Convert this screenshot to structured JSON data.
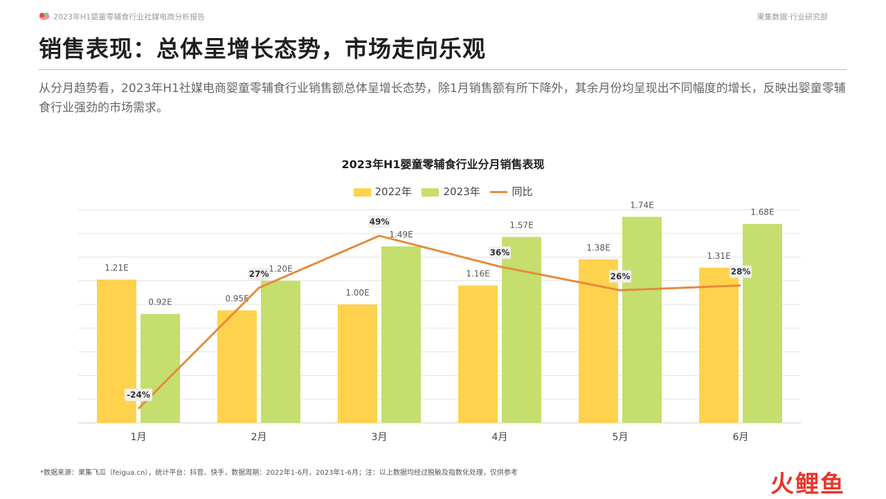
{
  "header": {
    "report_title": "2023年H1婴童零辅食行业社媒电商分析报告",
    "dept": "果集数据·行业研究部"
  },
  "page_title": "销售表现：总体呈增长态势，市场走向乐观",
  "summary": "从分月趋势看，2023年H1社媒电商婴童零辅食行业销售额总体呈增长态势，除1月销售额有所下降外，其余月份均呈现出不同幅度的增长，反映出婴童零辅食行业强劲的市场需求。",
  "colors": {
    "bar_2022": "#FFD24D",
    "bar_2023": "#C5DE6E",
    "yoy_line": "#E58B3A",
    "grid": "#E3E3E3"
  },
  "chart_data": {
    "type": "bar",
    "title": "2023年H1婴童零辅食行业分月销售表现",
    "categories": [
      "1月",
      "2月",
      "3月",
      "4月",
      "5月",
      "6月"
    ],
    "series": [
      {
        "name": "2022年",
        "values": [
          1.21,
          0.95,
          1.0,
          1.16,
          1.38,
          1.31
        ],
        "labels": [
          "1.21E",
          "0.95E",
          "1.00E",
          "1.16E",
          "1.38E",
          "1.31E"
        ]
      },
      {
        "name": "2023年",
        "values": [
          0.92,
          1.2,
          1.49,
          1.57,
          1.74,
          1.68
        ],
        "labels": [
          "0.92E",
          "1.20E",
          "1.49E",
          "1.57E",
          "1.74E",
          "1.68E"
        ]
      }
    ],
    "line_series": {
      "name": "同比",
      "type": "line",
      "values": [
        -24,
        27,
        49,
        36,
        26,
        28
      ],
      "labels": [
        "-24%",
        "27%",
        "49%",
        "36%",
        "26%",
        "28%"
      ]
    },
    "ylim": [
      0,
      1.8
    ],
    "line_ylim": [
      -30,
      60
    ],
    "grid": true,
    "legend_position": "top"
  },
  "footnote": "*数据来源：果集飞瓜（feigua.cn），统计平台：抖音、快手，数据周期：2022年1-6月，2023年1-6月；注：以上数据均经过脱敏及指数化处理，仅供参考",
  "watermark": {
    "part1": "火",
    "part2": "鲤鱼"
  }
}
